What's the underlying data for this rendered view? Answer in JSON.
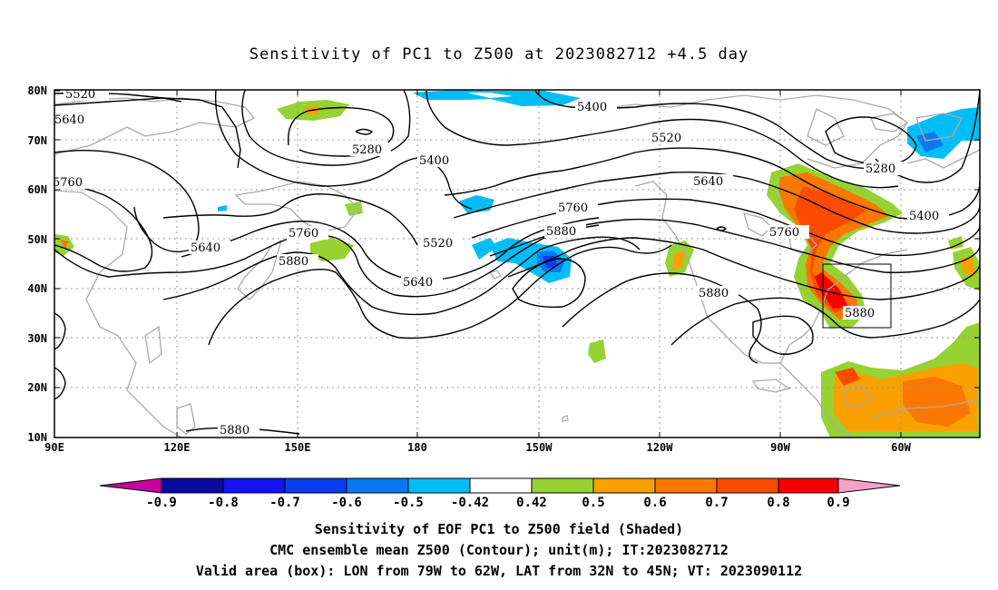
{
  "title": "Sensitivity of PC1 to Z500 at 2023082712 +4.5 day",
  "axes": {
    "lat_labels": [
      "80N",
      "70N",
      "60N",
      "50N",
      "40N",
      "30N",
      "20N",
      "10N"
    ],
    "lon_labels": [
      "90E",
      "120E",
      "150E",
      "180",
      "150W",
      "120W",
      "90W",
      "60W"
    ]
  },
  "contour_labels": {
    "c5520_nw": "5520",
    "c5640_nw": "5640",
    "c5760_w": "5760",
    "c5280_n": "5280",
    "c5400_mid": "5400",
    "c5400_top": "5400",
    "c5520_top": "5520",
    "c5280_ne": "5280",
    "c5640_ne": "5640",
    "c5400_e": "5400",
    "c5760_mid": "5760",
    "c5880_mid": "5880",
    "c5520_mid": "5520",
    "c5640_w": "5640",
    "c5760_w2": "5760",
    "c5880_w": "5880",
    "c5640_mid": "5640",
    "c5760_e": "5760",
    "c5880_e": "5880",
    "c5880_box": "5880",
    "c5880_s": "5880"
  },
  "colorbar": {
    "ticks": [
      "-0.9",
      "-0.8",
      "-0.7",
      "-0.6",
      "-0.5",
      "-0.42",
      "0.42",
      "0.5",
      "0.6",
      "0.7",
      "0.8",
      "0.9"
    ],
    "colors": {
      "low_end": "#c800a0",
      "b1": "#0a0aa0",
      "b2": "#1414f0",
      "b3": "#0a3cf0",
      "b4": "#0a78f0",
      "b5": "#00bef5",
      "neutral": "#ffffff",
      "p1": "#96d232",
      "p2": "#faa000",
      "p3": "#fa7800",
      "p4": "#fa4b00",
      "p5": "#fa0000",
      "high_end": "#f5a0c8"
    }
  },
  "caption": {
    "line1": "Sensitivity of EOF PC1 to Z500 field (Shaded)",
    "line2": "CMC ensemble mean Z500 (Contour); unit(m); IT:2023082712",
    "line3": "Valid area (box): LON from 79W to 62W, LAT from 32N to 45N; VT: 2023090112"
  }
}
